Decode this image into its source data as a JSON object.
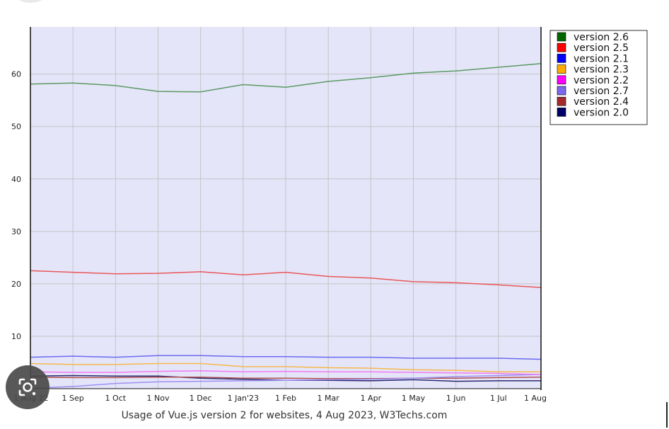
{
  "chart_data": {
    "type": "line",
    "caption": "Usage of Vue.js version 2 for websites, 4 Aug 2023, W3Techs.com",
    "x": [
      "1 Aug 22",
      "1 Sep",
      "1 Oct",
      "1 Nov",
      "1 Dec",
      "1 Jan'23",
      "1 Feb",
      "1 Mar",
      "1 Apr",
      "1 May",
      "1 Jun",
      "1 Jul",
      "1 Aug"
    ],
    "x_tick_labels": [
      "1 Aug 22",
      "1 Sep",
      "1 Oct",
      "1 Nov",
      "1 Dec",
      "1 Jan'23",
      "1 Feb",
      "1 Mar",
      "1 Apr",
      "1 May",
      "1 Jun",
      "1 Jul",
      "1 Aug"
    ],
    "y_ticks": [
      10,
      20,
      30,
      40,
      50,
      60
    ],
    "ylim": [
      0,
      69
    ],
    "grid": true,
    "legend_position": "right",
    "plot_background": "#e5e5fa",
    "series": [
      {
        "name": "version 2.6",
        "legend_color": "#006600",
        "line_color": "#5a9a62",
        "values": [
          58.1,
          58.3,
          57.8,
          56.7,
          56.6,
          58.0,
          57.5,
          58.6,
          59.3,
          60.2,
          60.6,
          61.3,
          62.0
        ]
      },
      {
        "name": "version 2.5",
        "legend_color": "#ff0000",
        "line_color": "#e85858",
        "values": [
          22.5,
          22.2,
          21.9,
          22.0,
          22.3,
          21.7,
          22.2,
          21.4,
          21.1,
          20.4,
          20.2,
          19.8,
          19.3
        ]
      },
      {
        "name": "version 2.1",
        "legend_color": "#0000ff",
        "line_color": "#6a6af0",
        "values": [
          6.0,
          6.2,
          6.0,
          6.3,
          6.3,
          6.1,
          6.1,
          6.0,
          6.0,
          5.8,
          5.8,
          5.8,
          5.6
        ]
      },
      {
        "name": "version 2.3",
        "legend_color": "#ffaa00",
        "line_color": "#f5b84a",
        "values": [
          4.8,
          4.6,
          4.6,
          4.8,
          4.8,
          4.2,
          4.2,
          4.0,
          3.9,
          3.6,
          3.5,
          3.2,
          3.2
        ]
      },
      {
        "name": "version 2.2",
        "legend_color": "#ff00ff",
        "line_color": "#f07af0",
        "values": [
          3.2,
          3.1,
          3.1,
          3.3,
          3.4,
          3.2,
          3.3,
          3.2,
          3.2,
          3.1,
          3.0,
          2.9,
          2.7
        ]
      },
      {
        "name": "version 2.7",
        "legend_color": "#7b68ee",
        "line_color": "#9d8ff0",
        "values": [
          0.1,
          0.4,
          1.0,
          1.3,
          1.4,
          1.5,
          1.6,
          1.7,
          1.8,
          2.0,
          2.3,
          2.5,
          2.7
        ]
      },
      {
        "name": "version 2.4",
        "legend_color": "#a52a2a",
        "line_color": "#b05050",
        "values": [
          2.2,
          2.1,
          2.1,
          2.2,
          2.2,
          2.0,
          2.0,
          1.9,
          1.9,
          2.0,
          2.0,
          2.1,
          2.2
        ]
      },
      {
        "name": "version 2.0",
        "legend_color": "#000066",
        "line_color": "#2a2a70",
        "values": [
          2.4,
          2.5,
          2.4,
          2.4,
          2.0,
          1.8,
          1.6,
          1.6,
          1.5,
          1.7,
          1.4,
          1.5,
          1.5
        ]
      }
    ]
  },
  "overlay": {
    "lens_icon": "google-lens-camera-icon"
  }
}
